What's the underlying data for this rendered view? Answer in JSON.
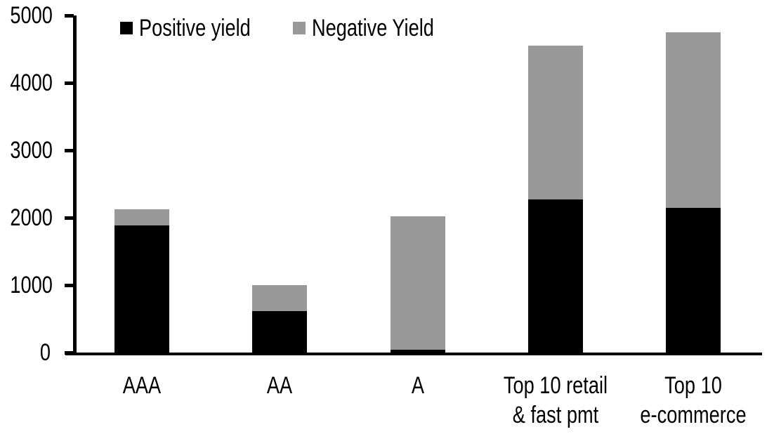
{
  "chart_data": {
    "type": "bar",
    "stacked": true,
    "categories": [
      "AAA",
      "AA",
      "A",
      "Top 10 retail\n& fast pmt",
      "Top 10\ne-commerce"
    ],
    "series": [
      {
        "name": "Positive yield",
        "color": "#000000",
        "values": [
          1890,
          615,
          45,
          2275,
          2150
        ]
      },
      {
        "name": "Negative Yield",
        "color": "#999999",
        "values": [
          230,
          385,
          1980,
          2280,
          2600
        ]
      }
    ],
    "ylim": [
      0,
      5000
    ],
    "yticks": [
      0,
      1000,
      2000,
      3000,
      4000,
      5000
    ],
    "xlabel": "",
    "ylabel": "",
    "grid": false,
    "legend_position": "top",
    "axis_color": "#000000",
    "background_color": "#ffffff"
  }
}
